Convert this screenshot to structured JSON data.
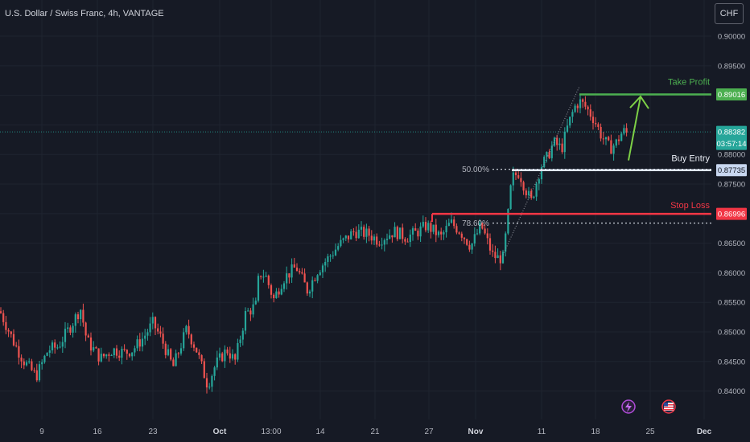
{
  "header": {
    "title": "U.S. Dollar / Swiss Franc, 4h, VANTAGE",
    "currency_button": "CHF"
  },
  "colors": {
    "background": "#161a25",
    "up": "#26a69a",
    "down": "#ef5350",
    "take_profit": "#4caf50",
    "stop_loss": "#f23645",
    "entry": "#c8d7f0",
    "axis_text": "#b2b5be",
    "grid": "#1f2430"
  },
  "chart_data": {
    "type": "candlestick",
    "title": "U.S. Dollar / Swiss Franc, 4h, VANTAGE",
    "y_axis": {
      "ylim": [
        0.8375,
        0.9015
      ],
      "ticks": [
        "0.90000",
        "0.89500",
        "0.89016",
        "0.88382",
        "0.88000",
        "0.87735",
        "0.87500",
        "0.86996",
        "0.86500",
        "0.86000",
        "0.85500",
        "0.85000",
        "0.84500",
        "0.84000"
      ]
    },
    "x_axis": {
      "ticks": [
        "9",
        "16",
        "23",
        "Oct",
        "13:00",
        "14",
        "21",
        "27",
        "Nov",
        "11",
        "18",
        "25",
        "Dec"
      ]
    },
    "grid": true,
    "price_path": [
      [
        0,
        0.8535
      ],
      [
        18,
        0.848
      ],
      [
        30,
        0.845
      ],
      [
        45,
        0.8425
      ],
      [
        60,
        0.847
      ],
      [
        72,
        0.8475
      ],
      [
        90,
        0.8515
      ],
      [
        100,
        0.854
      ],
      [
        108,
        0.8485
      ],
      [
        125,
        0.8455
      ],
      [
        140,
        0.847
      ],
      [
        155,
        0.8465
      ],
      [
        165,
        0.847
      ],
      [
        178,
        0.849
      ],
      [
        190,
        0.8515
      ],
      [
        200,
        0.849
      ],
      [
        215,
        0.844
      ],
      [
        232,
        0.8505
      ],
      [
        244,
        0.847
      ],
      [
        258,
        0.841
      ],
      [
        268,
        0.8445
      ],
      [
        282,
        0.847
      ],
      [
        292,
        0.845
      ],
      [
        305,
        0.853
      ],
      [
        318,
        0.8545
      ],
      [
        322,
        0.86
      ],
      [
        330,
        0.8595
      ],
      [
        340,
        0.8555
      ],
      [
        352,
        0.859
      ],
      [
        368,
        0.861
      ],
      [
        382,
        0.857
      ],
      [
        395,
        0.8605
      ],
      [
        408,
        0.8625
      ],
      [
        420,
        0.8645
      ],
      [
        440,
        0.867
      ],
      [
        458,
        0.8665
      ],
      [
        470,
        0.8655
      ],
      [
        490,
        0.867
      ],
      [
        505,
        0.866
      ],
      [
        520,
        0.867
      ],
      [
        530,
        0.868
      ],
      [
        540,
        0.867
      ],
      [
        548,
        0.866
      ],
      [
        560,
        0.8685
      ],
      [
        572,
        0.867
      ],
      [
        585,
        0.8645
      ],
      [
        598,
        0.868
      ],
      [
        605,
        0.8655
      ],
      [
        612,
        0.863
      ],
      [
        618,
        0.8625
      ],
      [
        625,
        0.8625
      ],
      [
        630,
        0.868
      ],
      [
        636,
        0.876
      ],
      [
        645,
        0.877
      ],
      [
        652,
        0.8745
      ],
      [
        660,
        0.872
      ],
      [
        666,
        0.875
      ],
      [
        672,
        0.878
      ],
      [
        680,
        0.8795
      ],
      [
        688,
        0.882
      ],
      [
        698,
        0.881
      ],
      [
        706,
        0.885
      ],
      [
        714,
        0.888
      ],
      [
        720,
        0.889
      ],
      [
        728,
        0.888
      ],
      [
        738,
        0.886
      ],
      [
        748,
        0.883
      ],
      [
        758,
        0.881
      ],
      [
        766,
        0.882
      ],
      [
        774,
        0.884
      ],
      [
        780,
        0.8835
      ]
    ],
    "levels": {
      "take_profit": {
        "label": "Take Profit",
        "value": 0.89016,
        "price_label": "0.89016"
      },
      "buy_entry": {
        "label": "Buy Entry",
        "value": 0.87735,
        "price_label": "0.87735"
      },
      "stop_loss": {
        "label": "Stop Loss",
        "value": 0.86996,
        "price_label": "0.86996"
      },
      "current": {
        "value": 0.88382,
        "price_label": "0.88382",
        "countdown": "03:57:14"
      }
    },
    "fib": [
      {
        "label": "50.00%",
        "value": 0.8775
      },
      {
        "label": "78.60%",
        "value": 0.8684
      }
    ],
    "annotations": {
      "arrow": "up-arrow"
    },
    "bottom_icons": [
      "lightning-icon",
      "us-flag-icon"
    ]
  }
}
